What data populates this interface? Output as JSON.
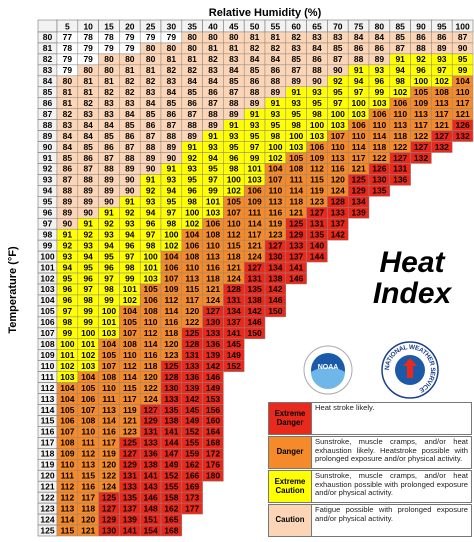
{
  "title": "Heat Index",
  "x_label": "Relative Humidity (%)",
  "y_label": "Temperature (°F)",
  "humidity": [
    5,
    10,
    15,
    20,
    25,
    30,
    35,
    40,
    45,
    50,
    55,
    60,
    65,
    70,
    75,
    80,
    85,
    90,
    95,
    100
  ],
  "temperatures": [
    80,
    81,
    82,
    83,
    84,
    85,
    86,
    87,
    88,
    89,
    90,
    91,
    92,
    93,
    94,
    95,
    96,
    97,
    98,
    99,
    100,
    101,
    102,
    103,
    104,
    105,
    106,
    107,
    108,
    109,
    110,
    111,
    112,
    113,
    114,
    115,
    116,
    117,
    118,
    119,
    120,
    121,
    122,
    123,
    124,
    125
  ],
  "rows": [
    [
      77,
      78,
      78,
      79,
      79,
      79,
      80,
      80,
      80,
      81,
      81,
      82,
      83,
      83,
      84,
      84,
      85,
      86,
      86,
      87
    ],
    [
      78,
      79,
      79,
      79,
      80,
      80,
      80,
      81,
      81,
      82,
      82,
      83,
      84,
      85,
      86,
      86,
      87,
      88,
      89,
      90
    ],
    [
      79,
      79,
      80,
      80,
      80,
      81,
      81,
      82,
      83,
      84,
      84,
      85,
      86,
      87,
      88,
      89,
      91,
      92,
      93,
      95
    ],
    [
      79,
      80,
      80,
      81,
      81,
      82,
      82,
      83,
      84,
      85,
      86,
      87,
      88,
      90,
      91,
      93,
      94,
      96,
      97,
      99
    ],
    [
      80,
      81,
      81,
      82,
      82,
      83,
      84,
      84,
      85,
      86,
      88,
      89,
      90,
      92,
      94,
      96,
      98,
      100,
      102,
      104
    ],
    [
      81,
      81,
      82,
      82,
      83,
      84,
      85,
      86,
      87,
      88,
      89,
      91,
      93,
      95,
      97,
      99,
      102,
      105,
      108,
      110
    ],
    [
      81,
      82,
      83,
      83,
      84,
      85,
      86,
      87,
      88,
      89,
      91,
      93,
      95,
      97,
      100,
      103,
      106,
      109,
      113,
      117
    ],
    [
      82,
      83,
      83,
      84,
      85,
      86,
      87,
      88,
      89,
      91,
      93,
      95,
      98,
      100,
      103,
      106,
      110,
      113,
      117,
      121
    ],
    [
      83,
      84,
      84,
      85,
      86,
      87,
      88,
      89,
      91,
      93,
      95,
      98,
      100,
      103,
      106,
      110,
      113,
      117,
      121,
      126
    ],
    [
      84,
      84,
      85,
      86,
      87,
      88,
      89,
      91,
      93,
      95,
      98,
      100,
      103,
      107,
      110,
      114,
      118,
      122,
      127,
      132
    ],
    [
      84,
      85,
      86,
      87,
      88,
      89,
      91,
      93,
      95,
      97,
      100,
      103,
      106,
      110,
      114,
      118,
      122,
      127,
      132
    ],
    [
      85,
      86,
      87,
      88,
      89,
      90,
      92,
      94,
      96,
      99,
      102,
      105,
      109,
      113,
      117,
      122,
      127,
      132
    ],
    [
      86,
      87,
      88,
      89,
      90,
      91,
      93,
      95,
      98,
      101,
      104,
      108,
      112,
      116,
      121,
      126,
      131
    ],
    [
      87,
      88,
      89,
      90,
      91,
      93,
      95,
      97,
      100,
      103,
      107,
      111,
      115,
      120,
      125,
      130,
      136
    ],
    [
      88,
      89,
      89,
      90,
      92,
      94,
      96,
      99,
      102,
      106,
      110,
      114,
      119,
      124,
      129,
      135
    ],
    [
      89,
      89,
      90,
      91,
      93,
      95,
      98,
      101,
      105,
      109,
      113,
      118,
      123,
      128,
      134
    ],
    [
      89,
      90,
      91,
      92,
      94,
      97,
      100,
      103,
      107,
      111,
      116,
      121,
      127,
      133,
      139
    ],
    [
      90,
      91,
      92,
      93,
      96,
      98,
      102,
      106,
      110,
      114,
      119,
      125,
      131,
      137
    ],
    [
      91,
      92,
      93,
      94,
      97,
      100,
      104,
      108,
      112,
      117,
      123,
      129,
      135,
      142
    ],
    [
      92,
      93,
      94,
      96,
      98,
      102,
      106,
      110,
      115,
      121,
      127,
      133,
      140
    ],
    [
      93,
      94,
      95,
      97,
      100,
      104,
      108,
      113,
      118,
      124,
      130,
      137,
      144
    ],
    [
      94,
      95,
      96,
      98,
      101,
      106,
      110,
      116,
      121,
      127,
      134,
      141
    ],
    [
      95,
      96,
      97,
      99,
      103,
      107,
      113,
      118,
      124,
      131,
      138,
      146
    ],
    [
      96,
      97,
      98,
      101,
      105,
      109,
      115,
      121,
      128,
      135,
      142
    ],
    [
      96,
      98,
      99,
      102,
      106,
      112,
      117,
      124,
      131,
      138,
      146
    ],
    [
      97,
      99,
      100,
      104,
      108,
      114,
      120,
      127,
      134,
      142,
      150
    ],
    [
      98,
      99,
      101,
      105,
      110,
      116,
      122,
      130,
      137,
      146
    ],
    [
      99,
      100,
      103,
      107,
      112,
      118,
      125,
      133,
      141,
      150
    ],
    [
      100,
      101,
      104,
      108,
      114,
      120,
      128,
      136,
      145
    ],
    [
      101,
      102,
      105,
      110,
      116,
      123,
      131,
      139,
      149
    ],
    [
      102,
      103,
      107,
      112,
      118,
      125,
      133,
      142,
      152
    ],
    [
      103,
      104,
      108,
      114,
      120,
      128,
      136,
      146
    ],
    [
      104,
      105,
      110,
      115,
      122,
      130,
      139,
      149
    ],
    [
      104,
      106,
      111,
      117,
      124,
      133,
      142,
      153
    ],
    [
      105,
      107,
      113,
      119,
      127,
      135,
      145,
      156
    ],
    [
      106,
      108,
      114,
      121,
      129,
      138,
      149,
      160
    ],
    [
      107,
      110,
      116,
      123,
      131,
      141,
      152,
      164
    ],
    [
      108,
      111,
      117,
      125,
      133,
      144,
      155,
      168
    ],
    [
      109,
      112,
      119,
      127,
      136,
      147,
      159,
      172
    ],
    [
      110,
      113,
      120,
      129,
      138,
      149,
      162,
      176
    ],
    [
      111,
      115,
      122,
      131,
      141,
      152,
      166,
      180
    ],
    [
      112,
      116,
      124,
      133,
      143,
      155,
      169
    ],
    [
      112,
      117,
      125,
      135,
      146,
      158,
      173
    ],
    [
      113,
      118,
      127,
      137,
      148,
      162,
      177
    ],
    [
      114,
      120,
      129,
      139,
      151,
      165
    ],
    [
      115,
      121,
      130,
      141,
      154,
      168
    ]
  ],
  "legend": [
    {
      "label": "Extreme Danger",
      "color": "#e8291c",
      "description": "Heat stroke likely."
    },
    {
      "label": "Danger",
      "color": "#f58a2a",
      "description": "Sunstroke, muscle cramps, and/or heat exhaustion likely. Heatstroke possible with prolonged exposure and/or physical activity."
    },
    {
      "label": "Extreme Caution",
      "color": "#ffff00",
      "description": "Sunstroke, muscle cramps, and/or heat exhaustion possible with prolonged exposure and/or physical activity."
    },
    {
      "label": "Caution",
      "color": "#fbd5b5",
      "description": "Fatigue possible with prolonged exposure and/or physical activity."
    }
  ],
  "logos": {
    "noaa": "NOAA",
    "nws": "NATIONAL WEATHER SERVICE"
  }
}
